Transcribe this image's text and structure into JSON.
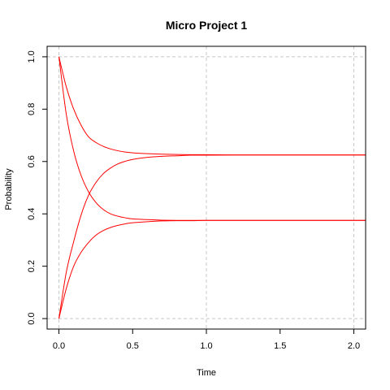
{
  "chart_data": {
    "type": "line",
    "title": "Micro Project 1",
    "xlabel": "Time",
    "ylabel": "Probability",
    "xlim": [
      -0.08,
      2.08
    ],
    "ylim": [
      -0.04,
      1.04
    ],
    "x_ticks": [
      0.0,
      0.5,
      1.0,
      1.5,
      2.0
    ],
    "x_tick_labels": [
      "0.0",
      "0.5",
      "1.0",
      "1.5",
      "2.0"
    ],
    "y_ticks": [
      0.0,
      0.2,
      0.4,
      0.6,
      0.8,
      1.0
    ],
    "y_tick_labels": [
      "0.0",
      "0.2",
      "0.4",
      "0.6",
      "0.8",
      "1.0"
    ],
    "grid": true,
    "grid_x": [
      0.0,
      1.0,
      2.0
    ],
    "grid_y": [
      0.0,
      1.0
    ],
    "line_color": "#ff0000",
    "grid_color": "#c8c8c8",
    "x": [
      0,
      0.05,
      0.1,
      0.15,
      0.2,
      0.25,
      0.3,
      0.35,
      0.4,
      0.45,
      0.5,
      0.6,
      0.7,
      0.8,
      0.9,
      1.0,
      1.2,
      1.4,
      1.6,
      1.8,
      2.0,
      2.08
    ],
    "series": [
      {
        "values": [
          1.0,
          0.885,
          0.8,
          0.739,
          0.695,
          0.673,
          0.658,
          0.648,
          0.641,
          0.636,
          0.633,
          0.63,
          0.628,
          0.627,
          0.626,
          0.626,
          0.625,
          0.625,
          0.625,
          0.625,
          0.625,
          0.625
        ]
      },
      {
        "values": [
          0.0,
          0.177,
          0.294,
          0.395,
          0.47,
          0.519,
          0.553,
          0.575,
          0.591,
          0.601,
          0.608,
          0.616,
          0.62,
          0.622,
          0.624,
          0.624,
          0.625,
          0.625,
          0.625,
          0.625,
          0.625,
          0.625
        ]
      },
      {
        "values": [
          1.0,
          0.78,
          0.64,
          0.547,
          0.485,
          0.444,
          0.417,
          0.4,
          0.391,
          0.385,
          0.381,
          0.378,
          0.376,
          0.375,
          0.375,
          0.375,
          0.375,
          0.375,
          0.375,
          0.375,
          0.375,
          0.375
        ]
      },
      {
        "values": [
          0.0,
          0.115,
          0.2,
          0.253,
          0.29,
          0.318,
          0.336,
          0.348,
          0.356,
          0.362,
          0.366,
          0.37,
          0.373,
          0.374,
          0.374,
          0.375,
          0.375,
          0.375,
          0.375,
          0.375,
          0.375,
          0.375
        ]
      }
    ]
  }
}
